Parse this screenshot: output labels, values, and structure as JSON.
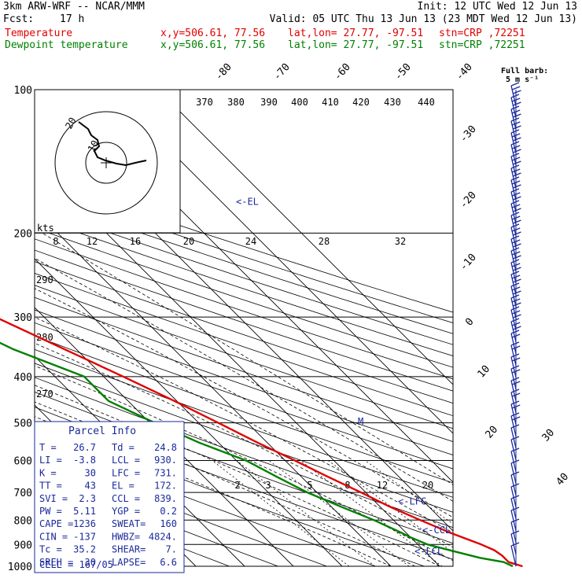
{
  "header": {
    "model": "3km ARW-WRF -- NCAR/MMM",
    "init": "Init: 12 UTC Wed 12 Jun 13",
    "fcst_label": "Fcst:",
    "fcst_value": "17 h",
    "valid": "Valid: 05 UTC Thu 13 Jun 13 (23 MDT Wed 12 Jun 13)",
    "temp_line": {
      "name": "Temperature",
      "xy": "x,y=506.61, 77.56",
      "latlon": "lat,lon= 27.77, -97.51",
      "stn": "stn=CRP ,72251"
    },
    "dew_line": {
      "name": "Dewpoint temperature",
      "xy": "x,y=506.61, 77.56",
      "latlon": "lat,lon= 27.77, -97.51",
      "stn": "stn=CRP ,72251"
    }
  },
  "colors": {
    "temperature": "#e00000",
    "dewpoint": "#008000",
    "parcel_box": "#1a2a9a",
    "grid": "#000000"
  },
  "barb_legend": {
    "line1": "Full barb:",
    "line2": "5 m s⁻¹"
  },
  "parcel_info": {
    "title": "Parcel Info",
    "rows": [
      [
        "T  =",
        "26.7",
        "Td =",
        "24.8"
      ],
      [
        "LI =",
        "-3.8",
        "LCL =",
        "930."
      ],
      [
        "K  =",
        "30",
        "LFC =",
        "731."
      ],
      [
        "TT =",
        "43",
        "EL =",
        "172."
      ],
      [
        "SVI =",
        "2.3",
        "CCL =",
        "839."
      ],
      [
        "PW =",
        "5.11",
        "YGP =",
        "0.2"
      ],
      [
        "CAPE =",
        "1236",
        "SWEAT=",
        "160"
      ],
      [
        "CIN =",
        "-137",
        "HWBZ=",
        "4824."
      ],
      [
        "Tc =",
        "35.2",
        "SHEAR=",
        "7."
      ],
      [
        "SREH =",
        "30",
        "LAPSE=",
        "6.6"
      ]
    ],
    "cell_label": "CELL =",
    "cell_value": "167/05"
  },
  "chart_data": {
    "type": "line",
    "diagram": "skew-T log-P",
    "pressure_levels": [
      100,
      200,
      300,
      400,
      500,
      600,
      700,
      800,
      900,
      1000
    ],
    "pressure_ticks": [
      "100",
      "200",
      "300",
      "400",
      "500",
      "600",
      "700",
      "800",
      "900",
      "1000"
    ],
    "isotherm_labels": [
      "-80",
      "-70",
      "-60",
      "-50",
      "-40",
      "-30",
      "-20",
      "-10",
      "0",
      "10",
      "20",
      "30",
      "40"
    ],
    "theta_labels": [
      "370",
      "380",
      "390",
      "400",
      "410",
      "420",
      "430",
      "440"
    ],
    "adiabat_labels": [
      "290",
      "280",
      "270"
    ],
    "hodograph_labels": [
      "kts",
      "8",
      "12",
      "16",
      "20",
      "24",
      "28",
      "32"
    ],
    "hodograph_ring_labels": [
      "20",
      "10"
    ],
    "mixing_ratio_labels": [
      "2",
      "3",
      "5",
      "8",
      "12",
      "20"
    ],
    "levels_marked": [
      {
        "label": "<-EL",
        "p": 172
      },
      {
        "label": "<-LFC",
        "p": 731
      },
      {
        "label": "<-CCL",
        "p": 839
      },
      {
        "label": "<-LCL",
        "p": 930
      }
    ],
    "series": [
      {
        "name": "Temperature",
        "color": "#e00000",
        "points": [
          [
            1000,
            27
          ],
          [
            980,
            25
          ],
          [
            950,
            25
          ],
          [
            925,
            24.5
          ],
          [
            900,
            23
          ],
          [
            850,
            19
          ],
          [
            800,
            15.5
          ],
          [
            750,
            12
          ],
          [
            700,
            9
          ],
          [
            650,
            5.5
          ],
          [
            600,
            2
          ],
          [
            550,
            -2
          ],
          [
            500,
            -6
          ],
          [
            450,
            -10.5
          ],
          [
            400,
            -16
          ],
          [
            350,
            -22.5
          ],
          [
            300,
            -30
          ],
          [
            250,
            -39
          ],
          [
            200,
            -50
          ],
          [
            175,
            -57
          ],
          [
            150,
            -63
          ],
          [
            130,
            -67
          ],
          [
            115,
            -70
          ],
          [
            100,
            -72
          ]
        ]
      },
      {
        "name": "Dewpoint temperature",
        "color": "#008000",
        "points": [
          [
            1000,
            25
          ],
          [
            980,
            24
          ],
          [
            960,
            20
          ],
          [
            930,
            16
          ],
          [
            900,
            12
          ],
          [
            870,
            10
          ],
          [
            850,
            9
          ],
          [
            800,
            6
          ],
          [
            750,
            2
          ],
          [
            700,
            -2
          ],
          [
            650,
            -5
          ],
          [
            600,
            -8
          ],
          [
            550,
            -14
          ],
          [
            500,
            -19
          ],
          [
            450,
            -24
          ],
          [
            400,
            -24
          ],
          [
            350,
            -33
          ],
          [
            300,
            -40
          ],
          [
            250,
            -52
          ],
          [
            200,
            -63
          ],
          [
            175,
            -68
          ],
          [
            165,
            -73
          ],
          [
            150,
            -76
          ],
          [
            130,
            -78
          ],
          [
            115,
            -80
          ],
          [
            100,
            -82
          ]
        ]
      }
    ]
  }
}
